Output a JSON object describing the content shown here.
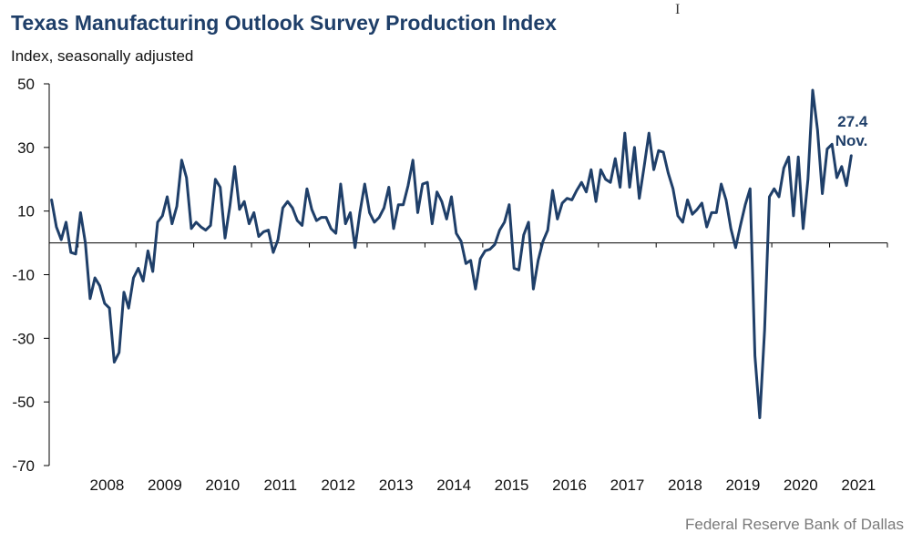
{
  "header": {
    "title": "Texas Manufacturing Outlook Survey Production Index",
    "subtitle": "Index, seasonally adjusted"
  },
  "footer": {
    "source": "Federal Reserve Bank of Dallas"
  },
  "cursor": {
    "icon": "text-cursor-icon",
    "glyph": "I"
  },
  "colors": {
    "line": "#1f3f69",
    "axis": "#000000",
    "source_text": "#7a7a7a"
  },
  "chart_data": {
    "type": "line",
    "title": "Texas Manufacturing Outlook Survey Production Index",
    "ylabel": "Index, seasonally adjusted",
    "ylim": [
      -70,
      50
    ],
    "yticks": [
      50,
      30,
      10,
      -10,
      -30,
      -50,
      -70
    ],
    "ytick_labels": [
      "50",
      "30",
      "10",
      "-10",
      "-30",
      "-50",
      "-70"
    ],
    "xlim": [
      "2007-07",
      "2021-12"
    ],
    "xtick_labels": [
      "2008",
      "2009",
      "2010",
      "2011",
      "2012",
      "2013",
      "2014",
      "2015",
      "2016",
      "2017",
      "2018",
      "2019",
      "2020",
      "2021"
    ],
    "x_start": "2007-07",
    "grid": false,
    "annotations": [
      {
        "text": "27.4",
        "at": "2021-11"
      },
      {
        "text": "Nov.",
        "at": "2021-11"
      }
    ],
    "series": [
      {
        "values": [
          13.5,
          5.0,
          1.0,
          6.5,
          -3.0,
          -3.5,
          9.5,
          0.0,
          -17.5,
          -11.0,
          -13.5,
          -19.0,
          -20.5,
          -37.5,
          -34.5,
          -15.5,
          -20.5,
          -11.0,
          -8.0,
          -12.0,
          -2.5,
          -9.0,
          6.5,
          8.5,
          14.5,
          6.0,
          11.5,
          26.0,
          20.5,
          4.5,
          6.5,
          5.0,
          4.0,
          5.5,
          20.0,
          17.5,
          1.5,
          11.5,
          24.0,
          10.5,
          13.0,
          6.0,
          9.5,
          2.0,
          3.5,
          4.0,
          -3.0,
          1.0,
          11.0,
          13.0,
          11.0,
          7.0,
          5.5,
          17.0,
          10.5,
          7.0,
          8.0,
          8.0,
          4.5,
          3.0,
          18.5,
          6.0,
          9.5,
          -1.5,
          9.5,
          18.5,
          9.5,
          6.5,
          8.0,
          11.0,
          17.5,
          4.5,
          12.0,
          12.0,
          18.0,
          26.0,
          9.5,
          18.5,
          19.0,
          6.0,
          16.0,
          13.0,
          7.5,
          14.5,
          3.0,
          0.5,
          -6.5,
          -5.5,
          -14.5,
          -5.0,
          -2.5,
          -2.0,
          -0.5,
          4.0,
          6.5,
          12.0,
          -8.0,
          -8.5,
          2.5,
          6.5,
          -14.5,
          -5.5,
          0.5,
          4.0,
          16.5,
          7.5,
          12.5,
          14.0,
          13.5,
          16.5,
          19.0,
          16.0,
          23.0,
          13.0,
          23.0,
          20.0,
          19.0,
          26.5,
          17.5,
          34.5,
          17.5,
          30.0,
          14.0,
          24.0,
          34.5,
          23.0,
          29.0,
          28.5,
          22.0,
          17.0,
          8.5,
          6.5,
          13.5,
          9.0,
          10.5,
          12.5,
          5.0,
          9.5,
          9.5,
          18.5,
          13.5,
          4.5,
          -1.5,
          5.5,
          12.0,
          17.0,
          -35.5,
          -55.0,
          -27.5,
          14.5,
          17.0,
          14.5,
          23.5,
          27.0,
          8.5,
          27.0,
          4.5,
          20.0,
          48.0,
          35.5,
          15.5,
          29.5,
          31.0,
          20.5,
          24.0,
          18.0,
          27.4
        ]
      }
    ]
  }
}
